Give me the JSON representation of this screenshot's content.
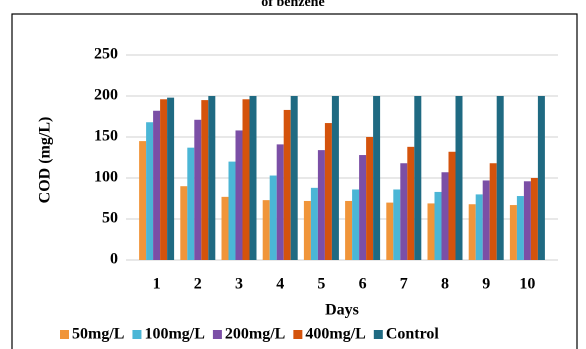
{
  "chart_data": {
    "type": "bar",
    "title": "of benzene",
    "x_label": "Days",
    "y_label": "COD (mg/L)",
    "categories": [
      "1",
      "2",
      "3",
      "4",
      "5",
      "6",
      "7",
      "8",
      "9",
      "10"
    ],
    "series": [
      {
        "name": "50mg/L",
        "color": "#f0953a",
        "values": [
          145,
          90,
          77,
          73,
          72,
          72,
          70,
          69,
          68,
          67
        ]
      },
      {
        "name": "100mg/L",
        "color": "#4bb6d6",
        "values": [
          168,
          137,
          120,
          103,
          88,
          86,
          86,
          83,
          80,
          78
        ]
      },
      {
        "name": "200mg/L",
        "color": "#7b4fa6",
        "values": [
          182,
          171,
          158,
          141,
          134,
          128,
          118,
          107,
          97,
          96
        ]
      },
      {
        "name": "400mg/L",
        "color": "#d4530c",
        "values": [
          196,
          195,
          196,
          183,
          167,
          150,
          138,
          132,
          118,
          100
        ]
      },
      {
        "name": "Control",
        "color": "#1f6a82",
        "values": [
          198,
          200,
          200,
          200,
          200,
          200,
          200,
          200,
          200,
          200
        ]
      }
    ],
    "ylim": [
      0,
      250
    ],
    "yticks": [
      0,
      50,
      100,
      150,
      200,
      250
    ],
    "grid": true,
    "legend": "bottom"
  }
}
